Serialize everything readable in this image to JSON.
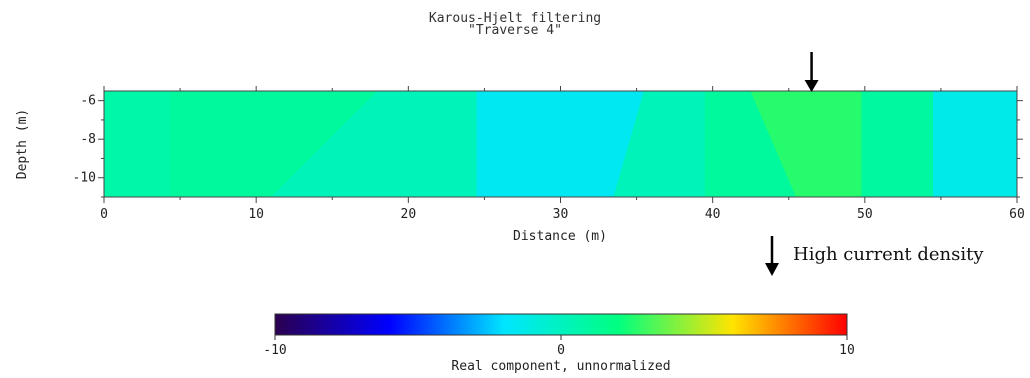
{
  "chart_data": {
    "type": "heatmap",
    "title": "Karous-Hjelt filtering",
    "subtitle": "\"Traverse 4\"",
    "xlabel": "Distance (m)",
    "ylabel": "Depth (m)",
    "xlim": [
      0,
      60
    ],
    "ylim": [
      -11,
      -5.5
    ],
    "x_ticks": [
      "0",
      "10",
      "20",
      "30",
      "40",
      "50",
      "60"
    ],
    "y_ticks": [
      "-6",
      "-8",
      "-10"
    ],
    "y_tick_values": [
      -6,
      -8,
      -10
    ],
    "x_tick_values": [
      0,
      10,
      20,
      30,
      40,
      50,
      60
    ],
    "regions": [
      {
        "x_top": [
          0,
          4.4
        ],
        "x_bottom": [
          0,
          4.4
        ],
        "value": 0.7
      },
      {
        "x_top": [
          4.4,
          18
        ],
        "x_bottom": [
          4.4,
          11
        ],
        "value": 1.1
      },
      {
        "x_top": [
          18,
          24.5
        ],
        "x_bottom": [
          11,
          24.5
        ],
        "value": 0.2
      },
      {
        "x_top": [
          24.5,
          35.5
        ],
        "x_bottom": [
          24.5,
          33.5
        ],
        "value": -1.6
      },
      {
        "x_top": [
          35.5,
          39.5
        ],
        "x_bottom": [
          33.5,
          39.5
        ],
        "value": 0.2
      },
      {
        "x_top": [
          39.5,
          42.5
        ],
        "x_bottom": [
          39.5,
          45.5
        ],
        "value": 1.1
      },
      {
        "x_top": [
          42.5,
          49.8
        ],
        "x_bottom": [
          45.5,
          49.8
        ],
        "value": 2.6
      },
      {
        "x_top": [
          49.8,
          54.5
        ],
        "x_bottom": [
          49.8,
          54.5
        ],
        "value": 1.0
      },
      {
        "x_top": [
          54.5,
          60
        ],
        "x_bottom": [
          54.5,
          60
        ],
        "value": -1.3
      }
    ],
    "annotation_arrow_x": 46.5,
    "annotation_text": "High current density",
    "colorbar": {
      "label": "Real component, unnormalized",
      "min": -10,
      "max": 10,
      "ticks": [
        "-10",
        "0",
        "10"
      ],
      "tick_values": [
        -10,
        0,
        10
      ],
      "colors": [
        "#2b004f",
        "#0000ff",
        "#00e5ff",
        "#00ff80",
        "#ffe400",
        "#ff0000"
      ]
    }
  }
}
